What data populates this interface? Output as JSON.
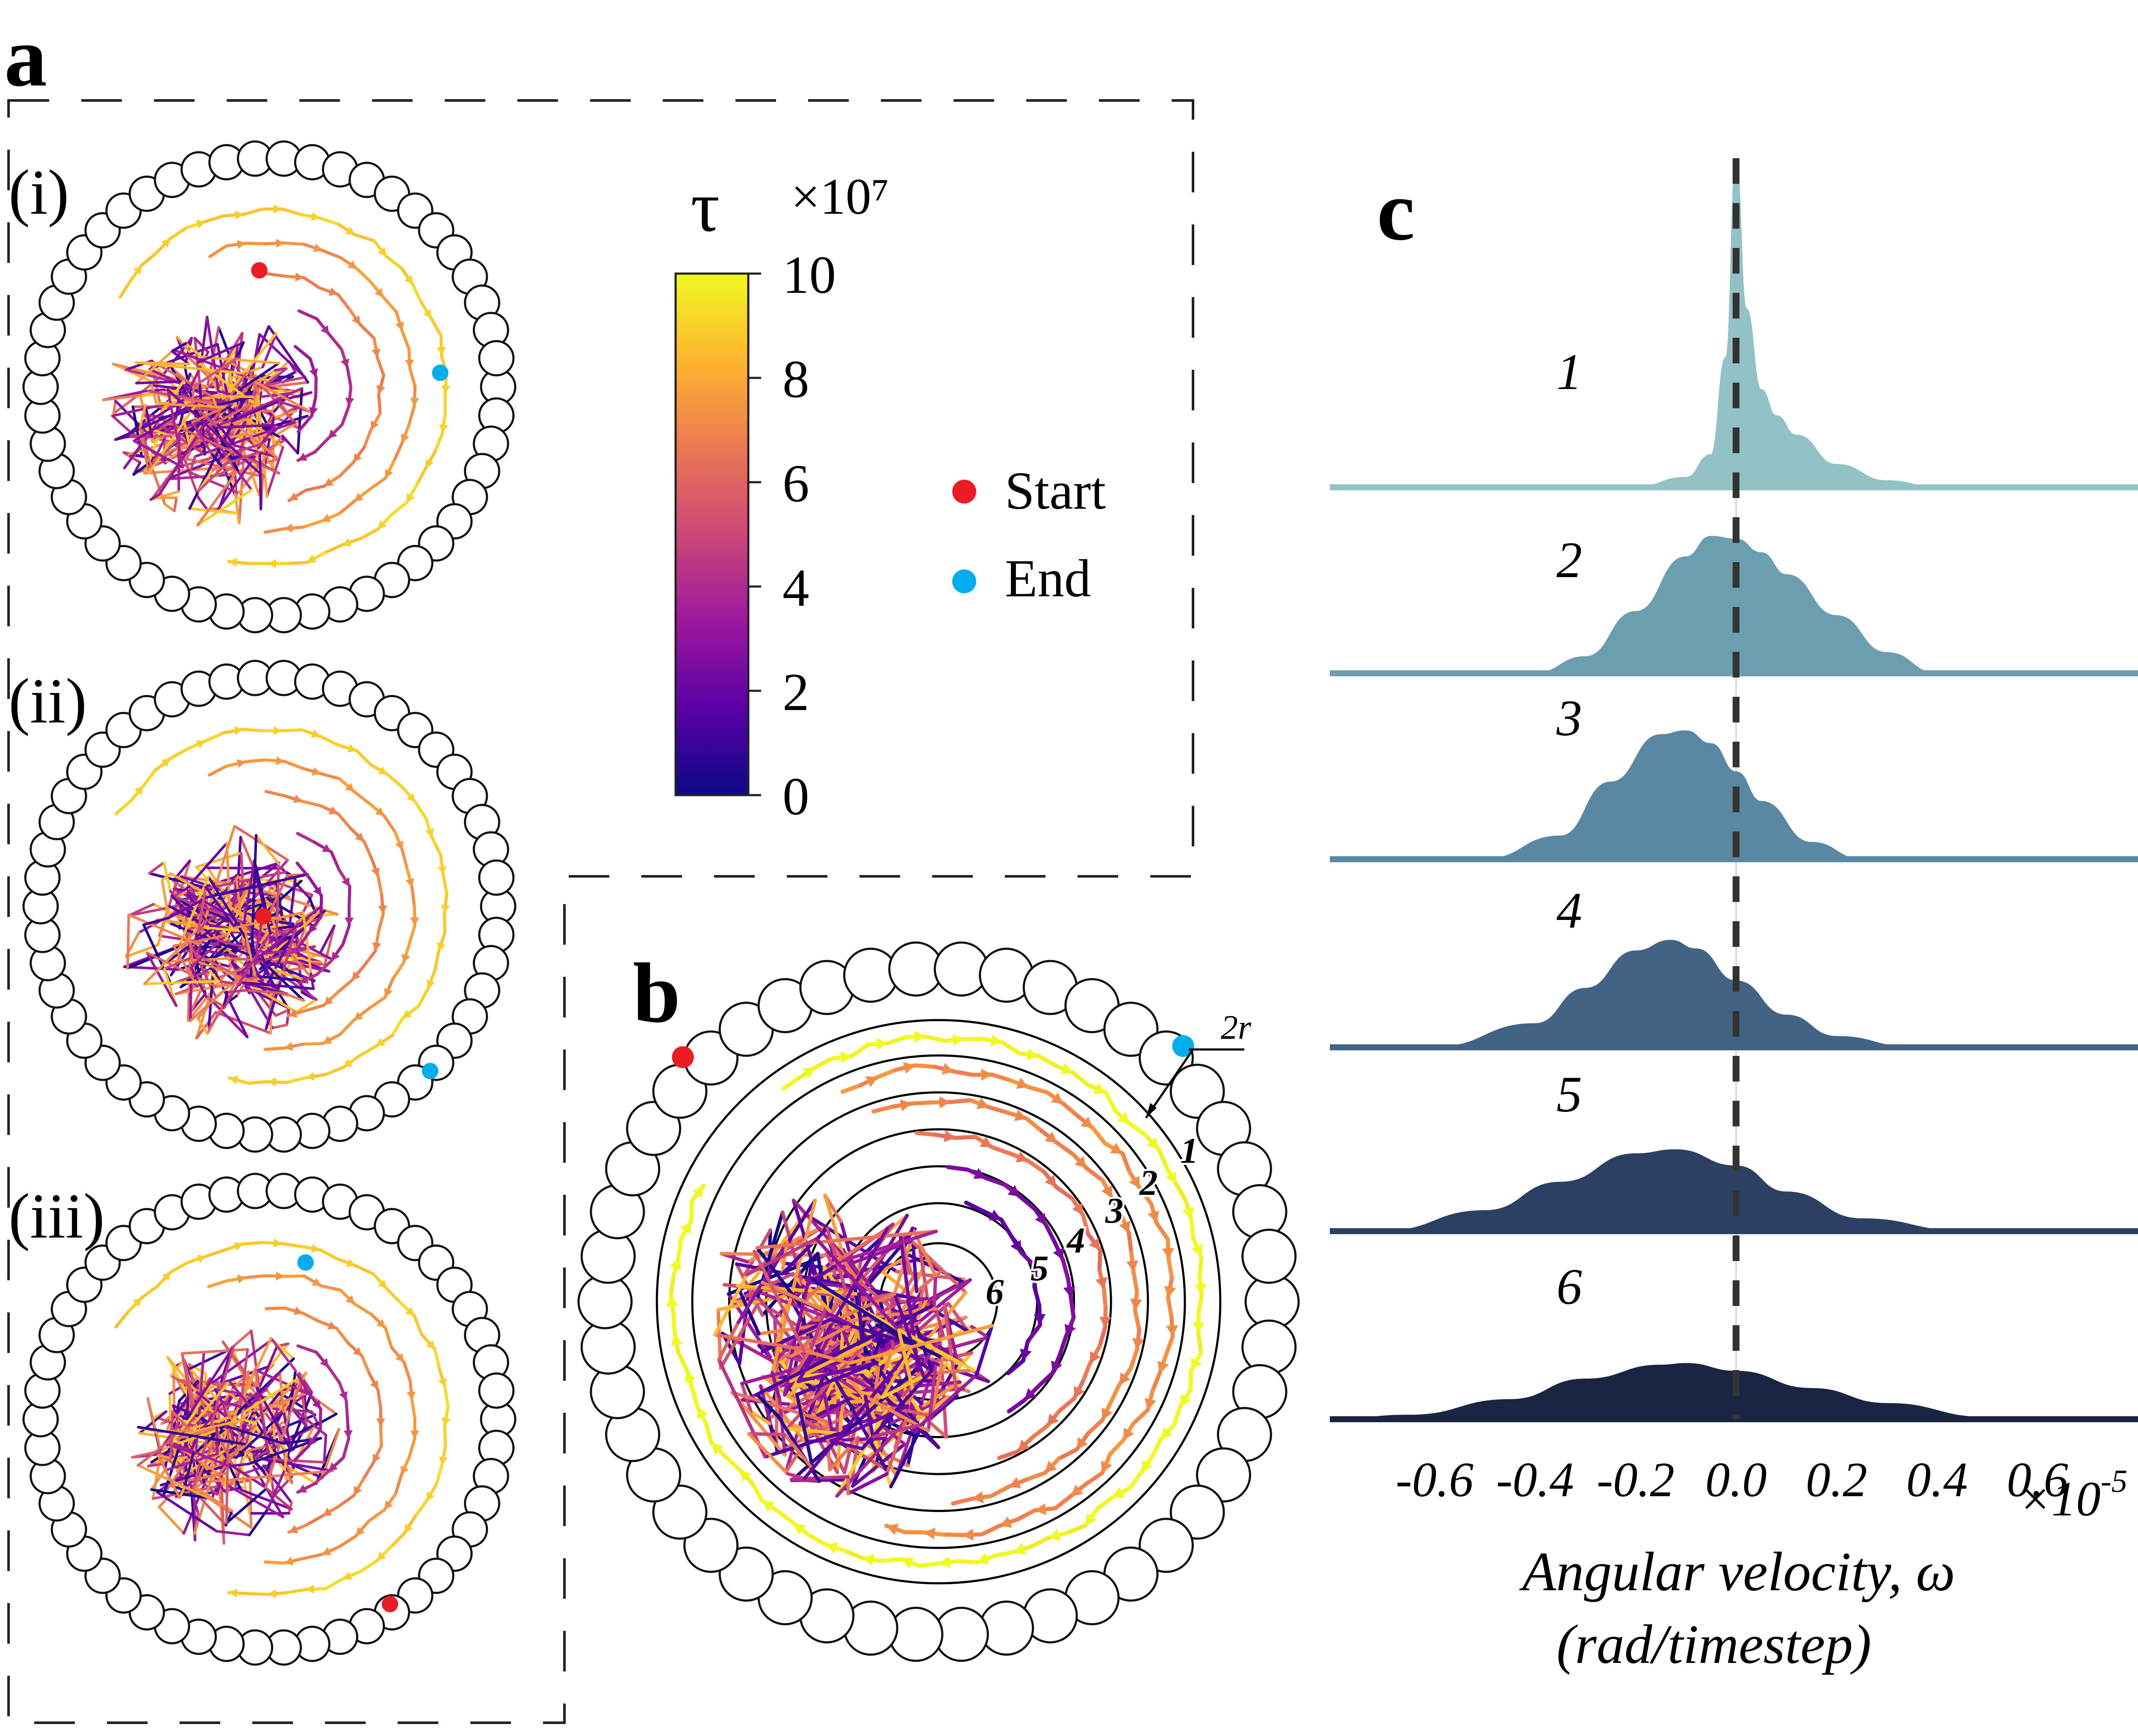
{
  "panel_labels": {
    "a": "a",
    "b": "b",
    "c": "c"
  },
  "subpanels": [
    "(i)",
    "(ii)",
    "(iii)"
  ],
  "colorbar": {
    "symbol": "τ",
    "multiplier": "×10⁷",
    "ticks": [
      "0",
      "2",
      "4",
      "6",
      "8",
      "10"
    ],
    "range": [
      0,
      10
    ],
    "colormap": [
      "#0d0887",
      "#5c01a6",
      "#9c179e",
      "#cc4778",
      "#ed7953",
      "#fdb42f",
      "#f0f921"
    ]
  },
  "legend": [
    {
      "label": "Start",
      "color": "#ec1c24"
    },
    {
      "label": "End",
      "color": "#00aeef"
    }
  ],
  "panel_b": {
    "ring_labels": [
      "1",
      "2",
      "3",
      "4",
      "5",
      "6"
    ],
    "scale_label": "2r",
    "start_color": "#ec1c24",
    "end_color": "#00aeef"
  },
  "chart_data": {
    "type": "area",
    "title": "",
    "xlabel": "Angular velocity, ω",
    "xlabel_units": "(rad/timestep)",
    "x_multiplier": "×10",
    "x_multiplier_exp": "-5",
    "xlim": [
      -0.8,
      0.8
    ],
    "xticks": [
      -0.6,
      -0.4,
      -0.2,
      0.0,
      0.2,
      0.4,
      0.6
    ],
    "tick_labels": [
      "-0.6",
      "-0.4",
      "-0.2",
      "0.0",
      "0.2",
      "0.4",
      "0.6"
    ],
    "reference_line_x": 0.0,
    "series": [
      {
        "name": "1",
        "color": "#93c2c6",
        "x": [
          -0.8,
          -0.2,
          -0.1,
          -0.05,
          -0.02,
          0.0,
          0.02,
          0.05,
          0.08,
          0.12,
          0.2,
          0.3,
          0.4,
          0.8
        ],
        "density": [
          0,
          0,
          0.03,
          0.1,
          0.4,
          1.0,
          0.55,
          0.3,
          0.22,
          0.16,
          0.07,
          0.02,
          0,
          0
        ]
      },
      {
        "name": "2",
        "color": "#6b9fb0",
        "x": [
          -0.8,
          -0.4,
          -0.3,
          -0.2,
          -0.1,
          -0.05,
          0.0,
          0.05,
          0.1,
          0.2,
          0.3,
          0.4,
          0.8
        ],
        "density": [
          0,
          0,
          0.12,
          0.45,
          0.85,
          1.0,
          0.98,
          0.88,
          0.72,
          0.42,
          0.15,
          0,
          0
        ]
      },
      {
        "name": "3",
        "color": "#5a87a1",
        "x": [
          -0.8,
          -0.5,
          -0.35,
          -0.25,
          -0.15,
          -0.1,
          -0.05,
          0.0,
          0.05,
          0.15,
          0.25,
          0.8
        ],
        "density": [
          0,
          0,
          0.18,
          0.6,
          0.97,
          1.0,
          0.9,
          0.68,
          0.45,
          0.13,
          0,
          0
        ]
      },
      {
        "name": "4",
        "color": "#436385",
        "x": [
          -0.8,
          -0.6,
          -0.4,
          -0.3,
          -0.2,
          -0.13,
          -0.08,
          0.0,
          0.1,
          0.2,
          0.35,
          0.8
        ],
        "density": [
          0,
          0,
          0.22,
          0.55,
          0.9,
          1.0,
          0.92,
          0.62,
          0.3,
          0.1,
          0,
          0
        ]
      },
      {
        "name": "5",
        "color": "#2b4063",
        "x": [
          -0.8,
          -0.7,
          -0.5,
          -0.35,
          -0.2,
          -0.12,
          0.0,
          0.1,
          0.25,
          0.45,
          0.8
        ],
        "density": [
          0,
          0,
          0.25,
          0.6,
          0.95,
          1.0,
          0.8,
          0.48,
          0.15,
          0,
          0
        ]
      },
      {
        "name": "6",
        "color": "#1a2542",
        "x": [
          -0.8,
          -0.65,
          -0.45,
          -0.3,
          -0.15,
          -0.1,
          0.0,
          0.15,
          0.3,
          0.5,
          0.8
        ],
        "density": [
          0,
          0.07,
          0.35,
          0.72,
          0.97,
          1.0,
          0.86,
          0.55,
          0.28,
          0.03,
          0
        ]
      }
    ]
  }
}
